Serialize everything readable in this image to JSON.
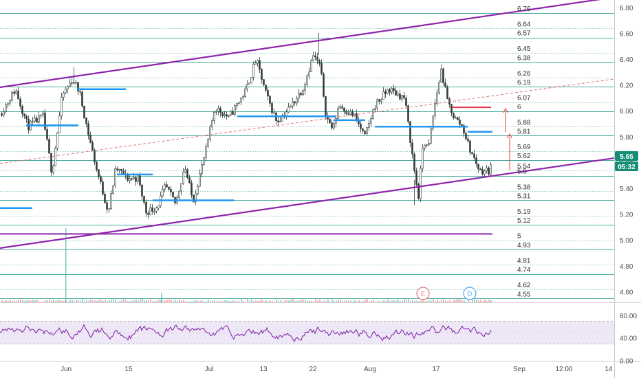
{
  "chart_data": {
    "type": "candlestick",
    "x_ticks": [
      "Jun",
      "15",
      "Jul",
      "13",
      "22",
      "Aug",
      "17",
      "Sep",
      "12:00",
      "14"
    ],
    "price_axis": {
      "ylim": [
        4.52,
        6.86
      ],
      "ticks": [
        "6.80",
        "6.60",
        "6.40",
        "6.20",
        "6.00",
        "5.80",
        "5.60",
        "5.40",
        "5.20",
        "5.00",
        "4.80",
        "4.60"
      ]
    },
    "last_price": "5.65",
    "countdown": "05:32",
    "levels": [
      {
        "value": 6.76,
        "label": "6.76"
      },
      {
        "value": 6.64,
        "label": "6.64"
      },
      {
        "value": 6.57,
        "label": "6.57"
      },
      {
        "value": 6.45,
        "label": "6.45"
      },
      {
        "value": 6.38,
        "label": "6.38"
      },
      {
        "value": 6.26,
        "label": "6.26"
      },
      {
        "value": 6.19,
        "label": "6.19"
      },
      {
        "value": 6.07,
        "label": "6.07"
      },
      {
        "value": 6.0,
        "label": "6"
      },
      {
        "value": 5.88,
        "label": "5.88"
      },
      {
        "value": 5.81,
        "label": "5.81"
      },
      {
        "value": 5.69,
        "label": "5.69"
      },
      {
        "value": 5.62,
        "label": "5.62"
      },
      {
        "value": 5.54,
        "label": "5.54"
      },
      {
        "value": 5.5,
        "label": "5.5"
      },
      {
        "value": 5.38,
        "label": "5.38"
      },
      {
        "value": 5.31,
        "label": "5.31"
      },
      {
        "value": 5.19,
        "label": "5.19"
      },
      {
        "value": 5.12,
        "label": "5.12"
      },
      {
        "value": 5.0,
        "label": "5"
      },
      {
        "value": 4.93,
        "label": "4.93"
      },
      {
        "value": 4.81,
        "label": "4.81"
      },
      {
        "value": 4.74,
        "label": "4.74"
      },
      {
        "value": 4.62,
        "label": "4.62"
      },
      {
        "value": 4.55,
        "label": "4.55"
      }
    ],
    "rsi": {
      "ylim": [
        0,
        100
      ],
      "ticks": [
        "80.00",
        "40.00",
        "0.00"
      ],
      "band": [
        30,
        70
      ]
    },
    "event_badges": [
      "E",
      "D"
    ],
    "colors": {
      "up": "#26a69a",
      "down": "#ef5350",
      "candle": "#2f3d3a",
      "level_line": "#2a9d8f",
      "channel": "#8e24aa",
      "midline": "#e57373",
      "support_segment": "#2196f3",
      "resistance_segment": "#e53950",
      "price_tag": "#138d75",
      "countdown_tag": "#138d75",
      "rsi_line": "#7b1fa2",
      "rsi_band": "#ede7f6"
    }
  }
}
